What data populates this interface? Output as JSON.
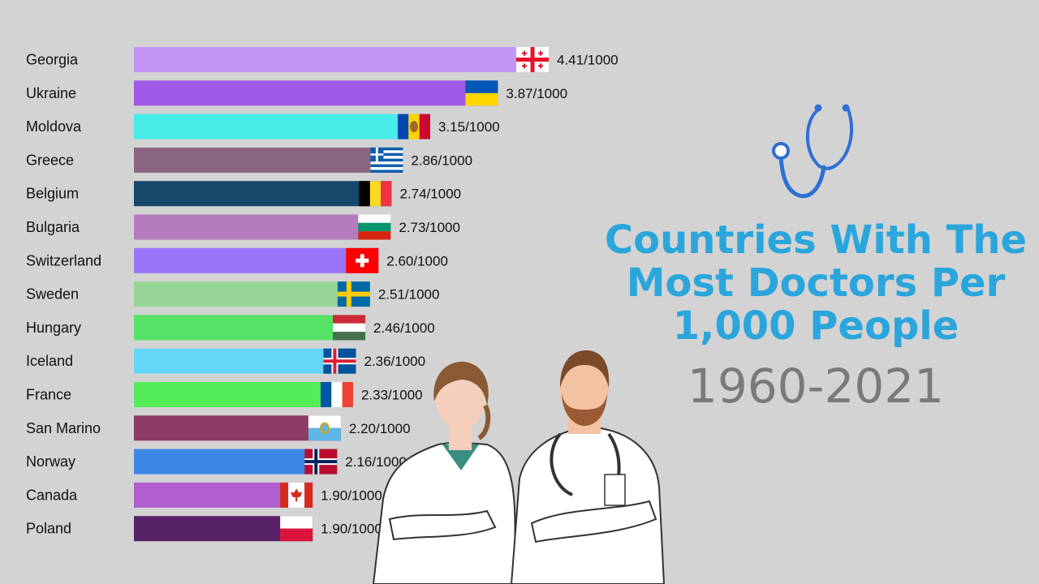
{
  "title_lines": [
    "Countries With The",
    "Most Doctors Per",
    "1,000 People"
  ],
  "subtitle": "1960-2021",
  "chart_data": {
    "type": "bar",
    "orientation": "horizontal",
    "value_suffix": "/1000",
    "categories": [
      "Georgia",
      "Ukraine",
      "Moldova",
      "Greece",
      "Belgium",
      "Bulgaria",
      "Switzerland",
      "Sweden",
      "Hungary",
      "Iceland",
      "France",
      "San Marino",
      "Norway",
      "Canada",
      "Poland"
    ],
    "values": [
      4.41,
      3.87,
      3.15,
      2.86,
      2.74,
      2.73,
      2.6,
      2.51,
      2.46,
      2.36,
      2.33,
      2.2,
      2.16,
      1.9,
      1.9
    ],
    "labels": [
      "4.41/1000",
      "3.87/1000",
      "3.15/1000",
      "2.86/1000",
      "2.74/1000",
      "2.73/1000",
      "2.60/1000",
      "2.51/1000",
      "2.46/1000",
      "2.36/1000",
      "2.33/1000",
      "2.20/1000",
      "2.16/1000",
      "1.90/1000",
      "1.90/1000"
    ],
    "colors": [
      "#c194f6",
      "#9e5ae6",
      "#48edea",
      "#89657f",
      "#16466a",
      "#b47cbd",
      "#9b75f9",
      "#97d697",
      "#55e266",
      "#66d6f6",
      "#55ec59",
      "#8c3a66",
      "#3c88e6",
      "#b05ed0",
      "#582268"
    ],
    "flags": [
      "georgia",
      "ukraine",
      "moldova",
      "greece",
      "belgium",
      "bulgaria",
      "switzerland",
      "sweden",
      "hungary",
      "iceland",
      "france",
      "san-marino",
      "norway",
      "canada",
      "poland"
    ],
    "xlim": [
      0,
      4.41
    ],
    "grid": false,
    "legend": "none"
  }
}
